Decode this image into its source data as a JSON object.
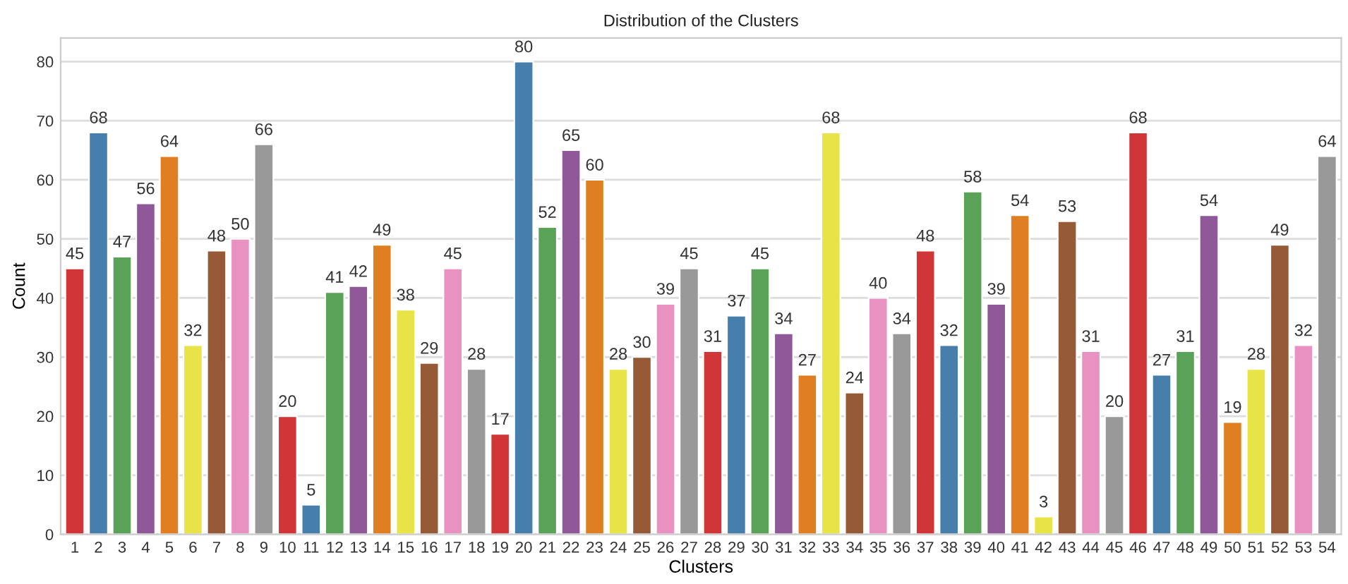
{
  "chart_data": {
    "type": "bar",
    "title": "Distribution of the Clusters",
    "xlabel": "Clusters",
    "ylabel": "Count",
    "categories": [
      "1",
      "2",
      "3",
      "4",
      "5",
      "6",
      "7",
      "8",
      "9",
      "10",
      "11",
      "12",
      "13",
      "14",
      "15",
      "16",
      "17",
      "18",
      "19",
      "20",
      "21",
      "22",
      "23",
      "24",
      "25",
      "26",
      "27",
      "28",
      "29",
      "30",
      "31",
      "32",
      "33",
      "34",
      "35",
      "36",
      "37",
      "38",
      "39",
      "40",
      "41",
      "42",
      "43",
      "44",
      "45",
      "46",
      "47",
      "48",
      "49",
      "50",
      "51",
      "52",
      "53",
      "54"
    ],
    "values": [
      45,
      68,
      47,
      56,
      64,
      32,
      48,
      50,
      66,
      20,
      5,
      41,
      42,
      49,
      38,
      29,
      45,
      28,
      17,
      80,
      52,
      65,
      60,
      28,
      30,
      39,
      45,
      31,
      37,
      45,
      34,
      27,
      68,
      24,
      40,
      34,
      48,
      32,
      58,
      39,
      54,
      3,
      53,
      31,
      20,
      68,
      27,
      31,
      54,
      19,
      28,
      49,
      32,
      64
    ],
    "colors": [
      "#d03537",
      "#467eac",
      "#5aa258",
      "#8f5898",
      "#e07f21",
      "#e8e447",
      "#965a37",
      "#e991c0",
      "#999999",
      "#d03537",
      "#467eac",
      "#5aa258",
      "#8f5898",
      "#e07f21",
      "#e8e447",
      "#965a37",
      "#e991c0",
      "#999999",
      "#d03537",
      "#467eac",
      "#5aa258",
      "#8f5898",
      "#e07f21",
      "#e8e447",
      "#965a37",
      "#e991c0",
      "#999999",
      "#d03537",
      "#467eac",
      "#5aa258",
      "#8f5898",
      "#e07f21",
      "#e8e447",
      "#965a37",
      "#e991c0",
      "#999999",
      "#d03537",
      "#467eac",
      "#5aa258",
      "#8f5898",
      "#e07f21",
      "#e8e447",
      "#965a37",
      "#e991c0",
      "#999999",
      "#d03537",
      "#467eac",
      "#5aa258",
      "#8f5898",
      "#e07f21",
      "#e8e447",
      "#965a37",
      "#e991c0",
      "#999999"
    ],
    "ylim": [
      0,
      84
    ],
    "yticks": [
      0,
      10,
      20,
      30,
      40,
      50,
      60,
      70,
      80
    ],
    "grid": "y",
    "data_labels": true
  }
}
